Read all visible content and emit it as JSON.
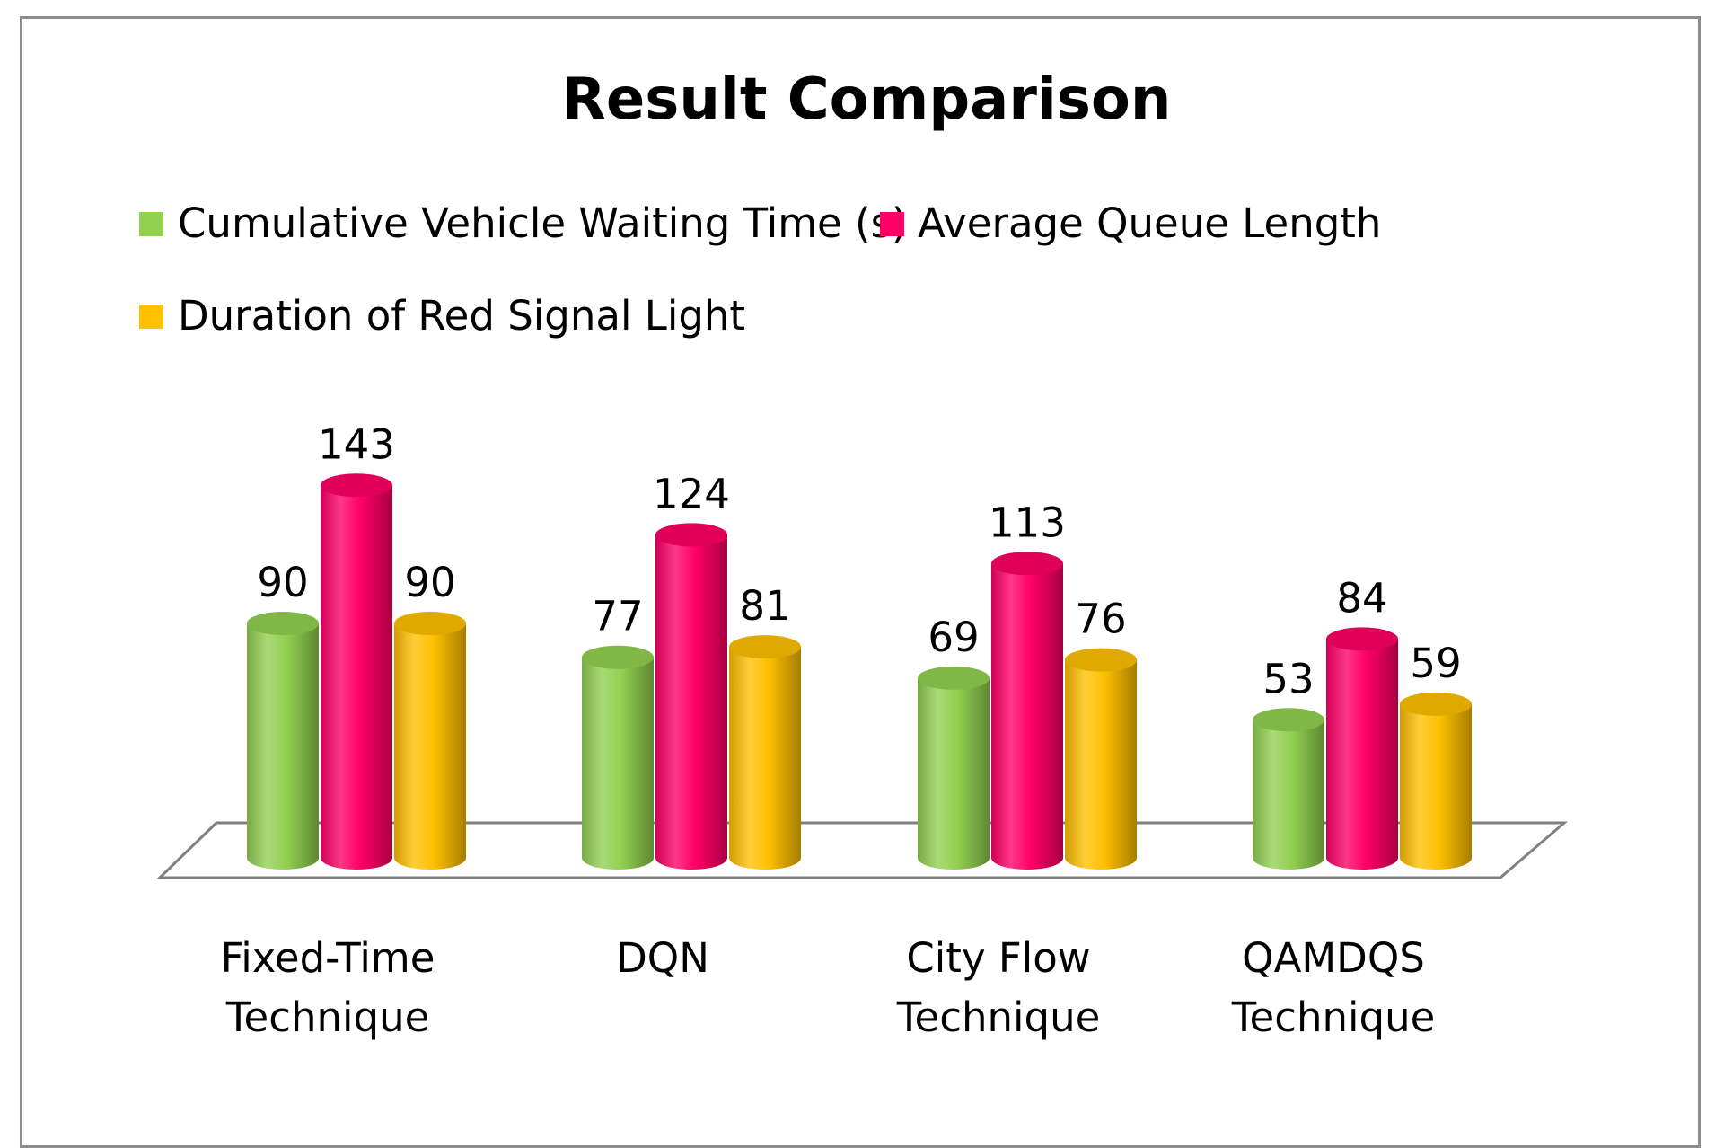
{
  "chart_data": {
    "type": "bar",
    "title": "Result Comparison",
    "xlabel": "",
    "ylabel": "",
    "ylim": [
      0,
      160
    ],
    "grid": false,
    "legend_position": "top-left",
    "categories": [
      [
        "Fixed-Time",
        "Technique"
      ],
      [
        "DQN"
      ],
      [
        "City Flow",
        "Technique"
      ],
      [
        "QAMDQS",
        "Technique"
      ]
    ],
    "series": [
      {
        "name": "Cumulative Vehicle Waiting Time (s)",
        "color": "#92d050",
        "values": [
          90,
          77,
          69,
          53
        ]
      },
      {
        "name": "Average Queue Length",
        "color": "#ff0066",
        "values": [
          143,
          124,
          113,
          84
        ]
      },
      {
        "name": "Duration of Red  Signal Light",
        "color": "#ffc000",
        "values": [
          90,
          81,
          76,
          59
        ]
      }
    ]
  }
}
